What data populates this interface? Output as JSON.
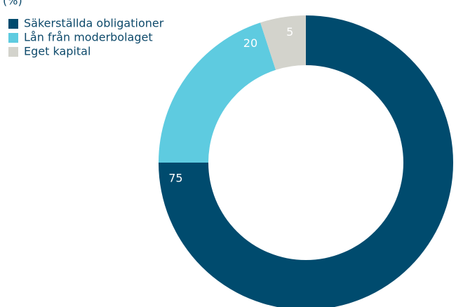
{
  "chart_data": {
    "type": "donut",
    "unit": "(%)",
    "categories": [
      "Säkerställda obligationer",
      "Lån från moderbolaget",
      "Eget kapital"
    ],
    "values": [
      75,
      20,
      5
    ],
    "colors": [
      "#004b6e",
      "#5ecbe0",
      "#d3d3cc"
    ],
    "label_color": "#ffffff",
    "legend": "top-left"
  }
}
